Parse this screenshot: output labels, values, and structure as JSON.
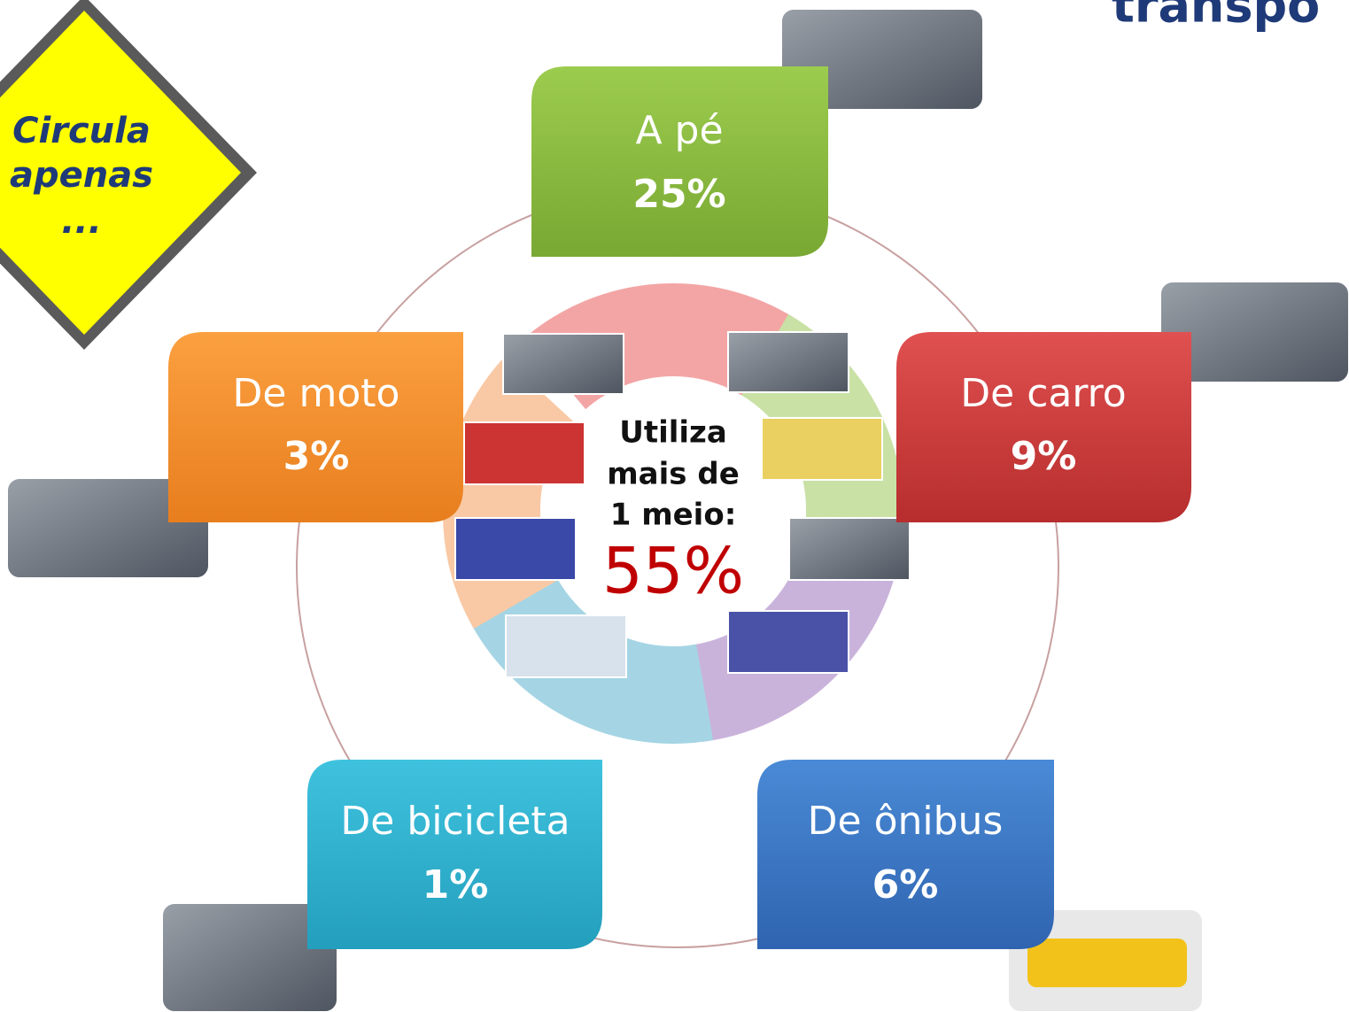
{
  "title": "transpo",
  "sign": {
    "lines": [
      "Circula",
      "apenas",
      "..."
    ]
  },
  "nodes": [
    {
      "label": "A pé",
      "value": "25%"
    },
    {
      "label": "De carro",
      "value": "9%"
    },
    {
      "label": "De ônibus",
      "value": "6%"
    },
    {
      "label": "De bicicleta",
      "value": "1%"
    },
    {
      "label": "De moto",
      "value": "3%"
    }
  ],
  "center": {
    "lines": [
      "Utiliza",
      "mais de",
      "1 meio:"
    ],
    "value": "55%"
  }
}
